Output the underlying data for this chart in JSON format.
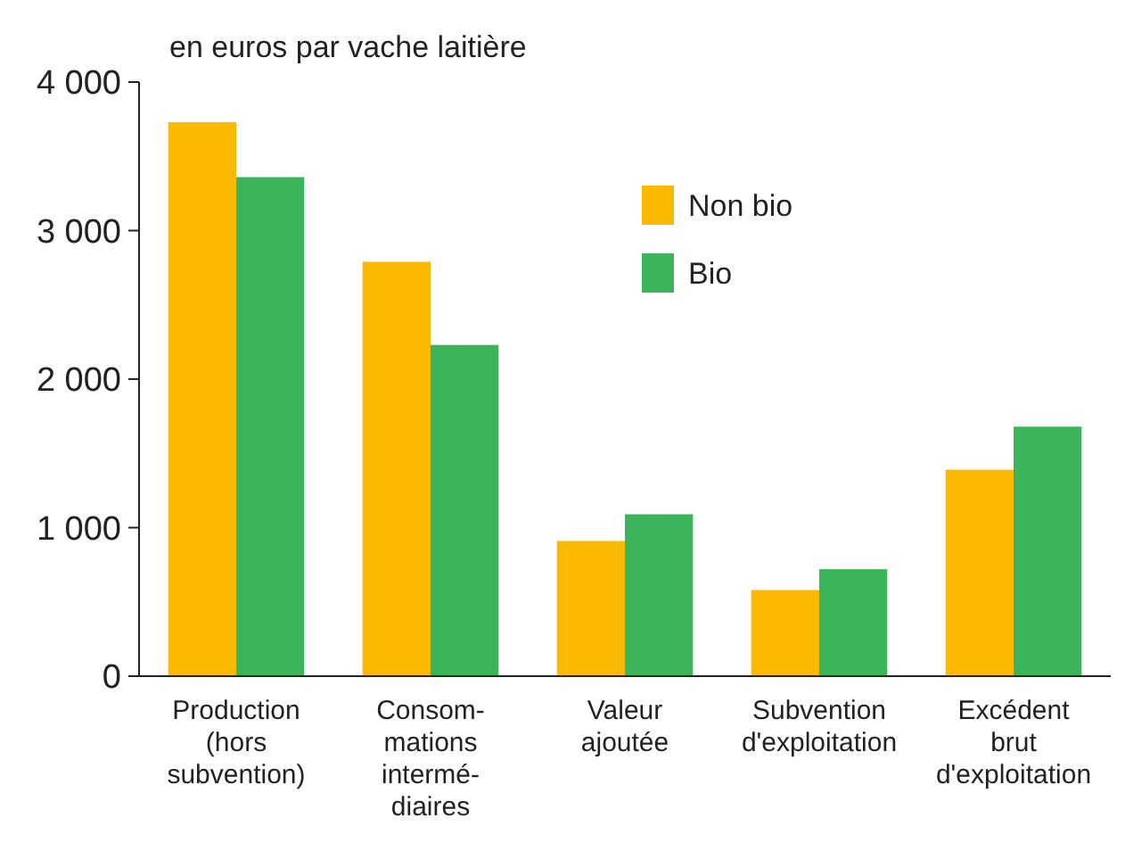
{
  "chart_data": {
    "type": "bar",
    "ylabel": "en euros par vache laitière",
    "categories": [
      "Production\n(hors\nsubvention)",
      "Consom-\nmations\nintermé-\ndiaires",
      "Valeur\najoutée",
      "Subvention\nd'exploitation",
      "Excédent\nbrut\nd'exploitation"
    ],
    "series": [
      {
        "name": "Non bio",
        "color": "#fbb900",
        "values": [
          3730,
          2790,
          910,
          580,
          1390
        ]
      },
      {
        "name": "Bio",
        "color": "#3cb45a",
        "values": [
          3360,
          2230,
          1090,
          720,
          1680
        ]
      }
    ],
    "ylim": [
      0,
      4000
    ],
    "yticks": [
      {
        "value": 0,
        "label": "0"
      },
      {
        "value": 1000,
        "label": "1 000"
      },
      {
        "value": 2000,
        "label": "2 000"
      },
      {
        "value": 3000,
        "label": "3 000"
      },
      {
        "value": 4000,
        "label": "4 000"
      }
    ],
    "legend": "top"
  }
}
